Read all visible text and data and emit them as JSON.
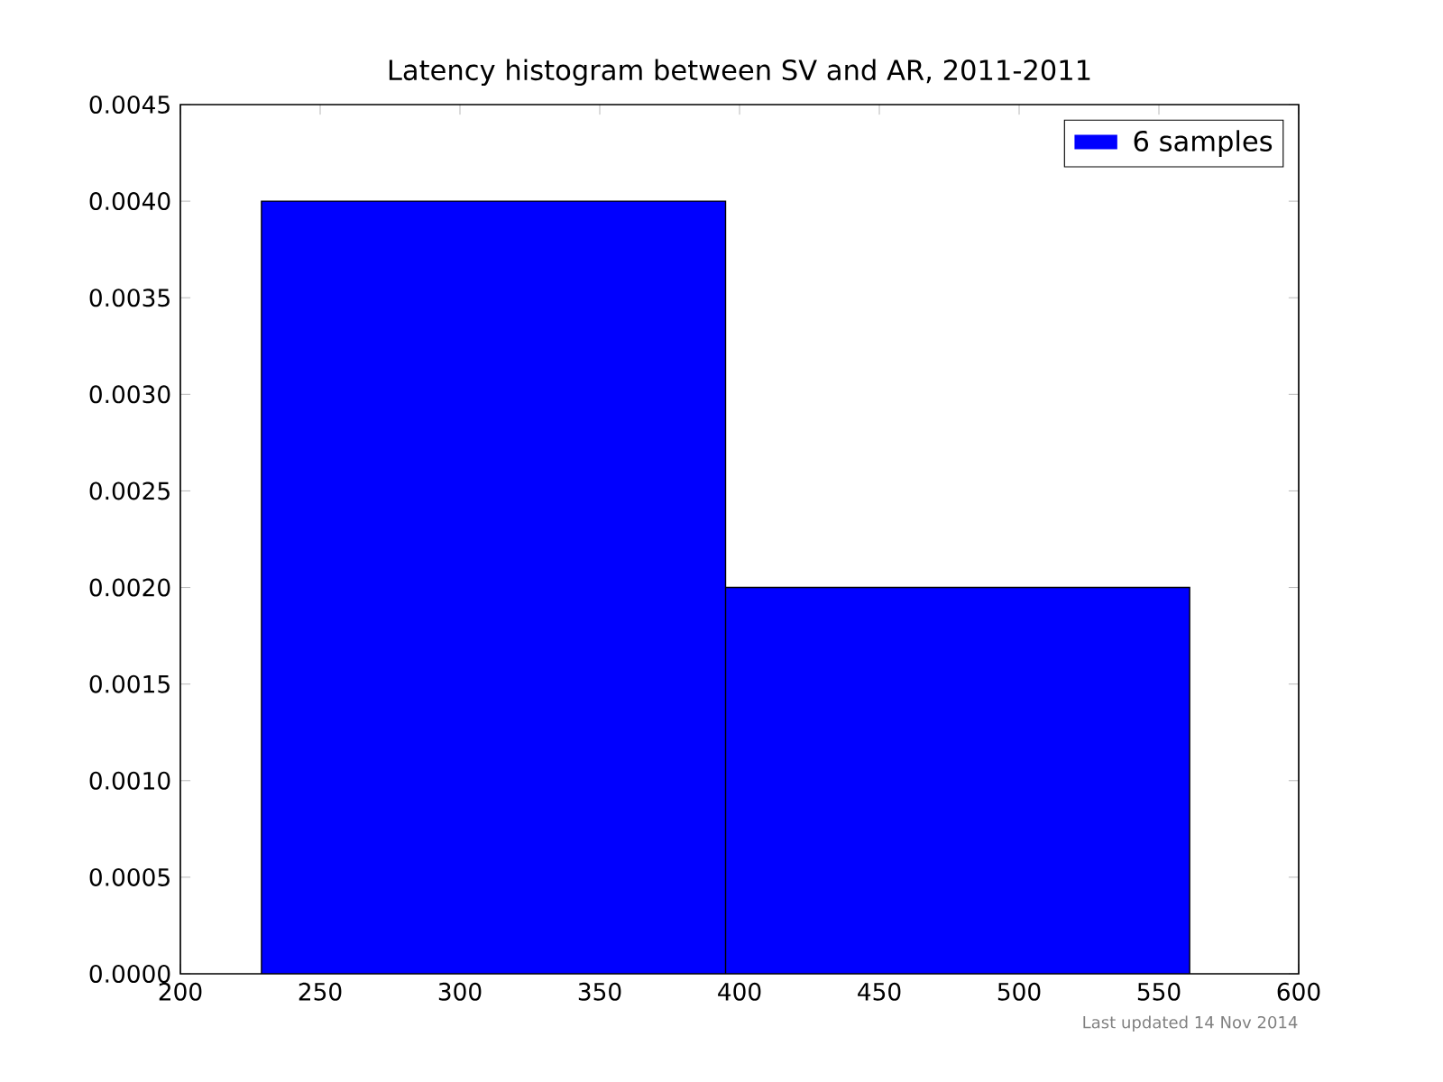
{
  "chart_data": {
    "type": "histogram",
    "title": "Latency histogram between SV and AR, 2011-2011",
    "bins": [
      229,
      395,
      561
    ],
    "series": [
      {
        "name": "6 samples",
        "color": "#0000ff",
        "values": [
          0.004,
          0.002
        ]
      }
    ],
    "xlim": [
      200,
      600
    ],
    "xticks": [
      200,
      250,
      300,
      350,
      400,
      450,
      500,
      550,
      600
    ],
    "ylim": [
      0,
      0.0045
    ],
    "yticks": [
      {
        "value": 0,
        "label": "0.0000"
      },
      {
        "value": 0.0005,
        "label": "0.0005"
      },
      {
        "value": 0.001,
        "label": "0.0010"
      },
      {
        "value": 0.0015,
        "label": "0.0015"
      },
      {
        "value": 0.002,
        "label": "0.0020"
      },
      {
        "value": 0.0025,
        "label": "0.0025"
      },
      {
        "value": 0.003,
        "label": "0.0030"
      },
      {
        "value": 0.0035,
        "label": "0.0035"
      },
      {
        "value": 0.004,
        "label": "0.0040"
      },
      {
        "value": 0.0045,
        "label": "0.0045"
      }
    ],
    "legend": "top right",
    "annotations": [
      "Last updated 14 Nov 2014"
    ]
  }
}
